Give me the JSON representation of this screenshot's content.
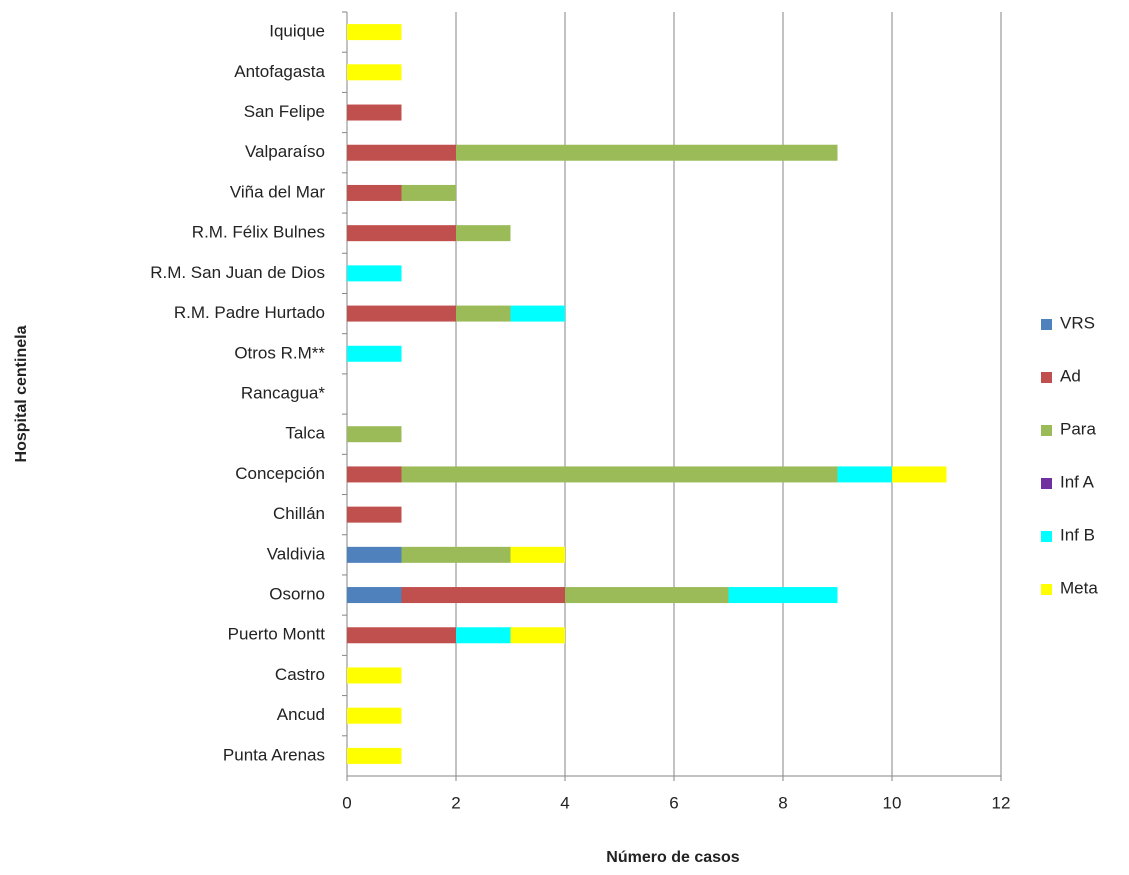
{
  "chart_data": {
    "type": "bar",
    "orientation": "horizontal",
    "stacked": true,
    "x_label": "Número de casos",
    "y_label": "Hospital centinela",
    "categories": [
      "Iquique",
      "Antofagasta",
      "San Felipe",
      "Valparaíso",
      "Viña del Mar",
      "R.M. Félix Bulnes",
      "R.M. San Juan de Dios",
      "R.M. Padre Hurtado",
      "Otros R.M**",
      "Rancagua*",
      "Talca",
      "Concepción",
      "Chillán",
      "Valdivia",
      "Osorno",
      "Puerto Montt",
      "Castro",
      "Ancud",
      "Punta Arenas"
    ],
    "series": [
      {
        "name": "VRS",
        "color": "#4f81bd",
        "values": [
          0,
          0,
          0,
          0,
          0,
          0,
          0,
          0,
          0,
          0,
          0,
          0,
          0,
          1,
          1,
          0,
          0,
          0,
          0
        ]
      },
      {
        "name": "Ad",
        "color": "#c0504d",
        "values": [
          0,
          0,
          1,
          2,
          1,
          2,
          0,
          2,
          0,
          0,
          0,
          1,
          1,
          0,
          3,
          2,
          0,
          0,
          0
        ]
      },
      {
        "name": "Para",
        "color": "#9bbb59",
        "values": [
          0,
          0,
          0,
          7,
          1,
          1,
          0,
          1,
          0,
          0,
          1,
          8,
          0,
          2,
          3,
          0,
          0,
          0,
          0
        ]
      },
      {
        "name": "Inf A",
        "color": "#7030a0",
        "values": [
          0,
          0,
          0,
          0,
          0,
          0,
          0,
          0,
          0,
          0,
          0,
          0,
          0,
          0,
          0,
          0,
          0,
          0,
          0
        ]
      },
      {
        "name": "Inf B",
        "color": "#00ffff",
        "values": [
          0,
          0,
          0,
          0,
          0,
          0,
          1,
          1,
          1,
          0,
          0,
          1,
          0,
          0,
          2,
          1,
          0,
          0,
          0
        ]
      },
      {
        "name": "Meta",
        "color": "#ffff00",
        "values": [
          1,
          1,
          0,
          0,
          0,
          0,
          0,
          0,
          0,
          0,
          0,
          1,
          0,
          1,
          0,
          1,
          1,
          1,
          1
        ]
      }
    ],
    "xlim": [
      0,
      12
    ],
    "xticks": [
      0,
      2,
      4,
      6,
      8,
      10,
      12
    ],
    "grid": true,
    "legend": "right"
  }
}
